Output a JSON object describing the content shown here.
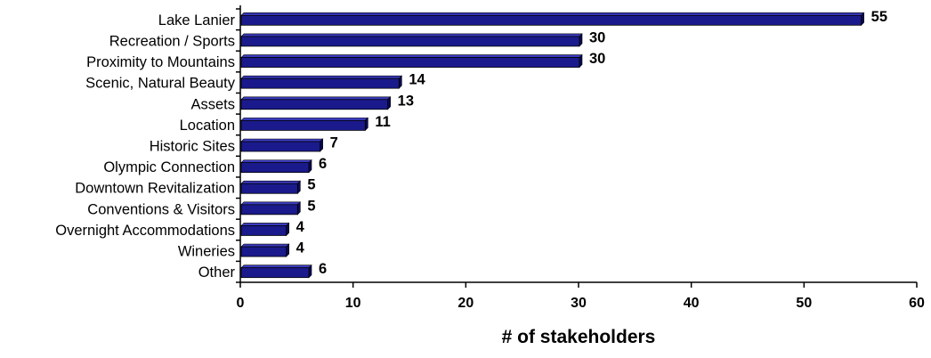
{
  "chart_data": {
    "type": "bar",
    "orientation": "horizontal",
    "categories": [
      "Lake Lanier",
      "Recreation / Sports",
      "Proximity to Mountains",
      "Scenic, Natural Beauty",
      "Assets",
      "Location",
      "Historic Sites",
      "Olympic Connection",
      "Downtown Revitalization",
      "Conventions & Visitors",
      "Overnight Accommodations",
      "Wineries",
      "Other"
    ],
    "values": [
      55,
      30,
      30,
      14,
      13,
      11,
      7,
      6,
      5,
      5,
      4,
      4,
      6
    ],
    "value_labels": [
      "55",
      "30",
      "30",
      "14",
      "13",
      "11",
      "7",
      "6",
      "5",
      "5",
      "4",
      "4",
      "6"
    ],
    "title": "",
    "xlabel": "# of stakeholders",
    "ylabel": "",
    "xlim": [
      0,
      60
    ],
    "xticks": [
      0,
      10,
      20,
      30,
      40,
      50,
      60
    ],
    "xtick_labels": [
      "0",
      "10",
      "20",
      "30",
      "40",
      "50",
      "60"
    ],
    "grid": false,
    "legend": "none",
    "colors": {
      "bar_front": "#1a1a8c",
      "bar_top": "#3a3ac0",
      "bar_side": "#0a0a50",
      "bar_outline": "#000000",
      "axis": "#000000",
      "text": "#000000"
    }
  }
}
